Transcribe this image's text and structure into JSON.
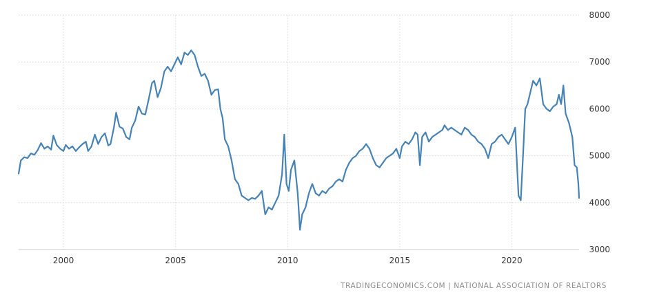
{
  "chart_data": {
    "type": "line",
    "title": "",
    "xlabel": "",
    "ylabel": "",
    "xlim": [
      1998.0,
      2023.0
    ],
    "ylim": [
      3000,
      8000
    ],
    "x_ticks": [
      2000,
      2005,
      2010,
      2015,
      2020
    ],
    "x_tick_labels": [
      "2000",
      "2005",
      "2010",
      "2015",
      "2020"
    ],
    "y_ticks": [
      3000,
      4000,
      5000,
      6000,
      7000,
      8000
    ],
    "y_tick_labels": [
      "3000",
      "4000",
      "5000",
      "6000",
      "7000",
      "8000"
    ],
    "y_axis_side": "right",
    "grid": true,
    "line_color": "#4682b4",
    "source": "TRADINGECONOMICS.COM | NATIONAL ASSOCIATION OF REALTORS",
    "series": [
      {
        "values": [
          [
            1998.0,
            4620
          ],
          [
            1998.1,
            4900
          ],
          [
            1998.25,
            4970
          ],
          [
            1998.4,
            4950
          ],
          [
            1998.55,
            5050
          ],
          [
            1998.7,
            5020
          ],
          [
            1998.85,
            5120
          ],
          [
            1999.0,
            5270
          ],
          [
            1999.15,
            5150
          ],
          [
            1999.3,
            5200
          ],
          [
            1999.45,
            5130
          ],
          [
            1999.55,
            5430
          ],
          [
            1999.7,
            5230
          ],
          [
            1999.85,
            5150
          ],
          [
            2000.0,
            5100
          ],
          [
            2000.1,
            5230
          ],
          [
            2000.25,
            5150
          ],
          [
            2000.4,
            5200
          ],
          [
            2000.55,
            5100
          ],
          [
            2000.7,
            5180
          ],
          [
            2000.85,
            5250
          ],
          [
            2001.0,
            5300
          ],
          [
            2001.1,
            5100
          ],
          [
            2001.25,
            5200
          ],
          [
            2001.4,
            5450
          ],
          [
            2001.55,
            5250
          ],
          [
            2001.7,
            5400
          ],
          [
            2001.85,
            5480
          ],
          [
            2002.0,
            5220
          ],
          [
            2002.1,
            5250
          ],
          [
            2002.25,
            5600
          ],
          [
            2002.35,
            5920
          ],
          [
            2002.5,
            5620
          ],
          [
            2002.65,
            5580
          ],
          [
            2002.8,
            5400
          ],
          [
            2002.95,
            5350
          ],
          [
            2003.05,
            5600
          ],
          [
            2003.2,
            5750
          ],
          [
            2003.35,
            6050
          ],
          [
            2003.5,
            5900
          ],
          [
            2003.65,
            5880
          ],
          [
            2003.8,
            6200
          ],
          [
            2003.95,
            6550
          ],
          [
            2004.05,
            6600
          ],
          [
            2004.2,
            6250
          ],
          [
            2004.35,
            6450
          ],
          [
            2004.5,
            6800
          ],
          [
            2004.65,
            6900
          ],
          [
            2004.8,
            6800
          ],
          [
            2004.95,
            6950
          ],
          [
            2005.1,
            7100
          ],
          [
            2005.25,
            6950
          ],
          [
            2005.4,
            7200
          ],
          [
            2005.55,
            7150
          ],
          [
            2005.7,
            7250
          ],
          [
            2005.85,
            7150
          ],
          [
            2006.0,
            6900
          ],
          [
            2006.15,
            6700
          ],
          [
            2006.3,
            6750
          ],
          [
            2006.45,
            6600
          ],
          [
            2006.6,
            6300
          ],
          [
            2006.75,
            6400
          ],
          [
            2006.9,
            6420
          ],
          [
            2007.0,
            6000
          ],
          [
            2007.1,
            5800
          ],
          [
            2007.2,
            5350
          ],
          [
            2007.35,
            5200
          ],
          [
            2007.5,
            4900
          ],
          [
            2007.65,
            4500
          ],
          [
            2007.8,
            4400
          ],
          [
            2007.95,
            4150
          ],
          [
            2008.1,
            4100
          ],
          [
            2008.25,
            4050
          ],
          [
            2008.4,
            4100
          ],
          [
            2008.55,
            4080
          ],
          [
            2008.7,
            4150
          ],
          [
            2008.85,
            4250
          ],
          [
            2009.0,
            3750
          ],
          [
            2009.15,
            3900
          ],
          [
            2009.3,
            3850
          ],
          [
            2009.45,
            4000
          ],
          [
            2009.6,
            4150
          ],
          [
            2009.75,
            4600
          ],
          [
            2009.85,
            5450
          ],
          [
            2009.95,
            4400
          ],
          [
            2010.05,
            4250
          ],
          [
            2010.15,
            4700
          ],
          [
            2010.3,
            4900
          ],
          [
            2010.45,
            4200
          ],
          [
            2010.55,
            3420
          ],
          [
            2010.65,
            3750
          ],
          [
            2010.8,
            3900
          ],
          [
            2010.95,
            4200
          ],
          [
            2011.1,
            4400
          ],
          [
            2011.25,
            4200
          ],
          [
            2011.4,
            4150
          ],
          [
            2011.55,
            4250
          ],
          [
            2011.7,
            4200
          ],
          [
            2011.85,
            4300
          ],
          [
            2012.0,
            4350
          ],
          [
            2012.15,
            4450
          ],
          [
            2012.3,
            4500
          ],
          [
            2012.45,
            4450
          ],
          [
            2012.6,
            4700
          ],
          [
            2012.75,
            4850
          ],
          [
            2012.9,
            4950
          ],
          [
            2013.05,
            5000
          ],
          [
            2013.2,
            5100
          ],
          [
            2013.35,
            5150
          ],
          [
            2013.5,
            5250
          ],
          [
            2013.65,
            5150
          ],
          [
            2013.8,
            4950
          ],
          [
            2013.95,
            4800
          ],
          [
            2014.1,
            4750
          ],
          [
            2014.25,
            4850
          ],
          [
            2014.4,
            4950
          ],
          [
            2014.55,
            5000
          ],
          [
            2014.7,
            5050
          ],
          [
            2014.85,
            5150
          ],
          [
            2015.0,
            4950
          ],
          [
            2015.1,
            5200
          ],
          [
            2015.25,
            5300
          ],
          [
            2015.4,
            5250
          ],
          [
            2015.55,
            5350
          ],
          [
            2015.7,
            5500
          ],
          [
            2015.8,
            5450
          ],
          [
            2015.9,
            4800
          ],
          [
            2016.0,
            5400
          ],
          [
            2016.15,
            5500
          ],
          [
            2016.3,
            5300
          ],
          [
            2016.45,
            5400
          ],
          [
            2016.6,
            5450
          ],
          [
            2016.75,
            5500
          ],
          [
            2016.9,
            5550
          ],
          [
            2017.0,
            5650
          ],
          [
            2017.15,
            5550
          ],
          [
            2017.3,
            5600
          ],
          [
            2017.45,
            5550
          ],
          [
            2017.6,
            5500
          ],
          [
            2017.75,
            5450
          ],
          [
            2017.9,
            5600
          ],
          [
            2018.05,
            5550
          ],
          [
            2018.2,
            5450
          ],
          [
            2018.35,
            5400
          ],
          [
            2018.5,
            5300
          ],
          [
            2018.65,
            5250
          ],
          [
            2018.8,
            5150
          ],
          [
            2018.95,
            4950
          ],
          [
            2019.1,
            5250
          ],
          [
            2019.25,
            5300
          ],
          [
            2019.4,
            5400
          ],
          [
            2019.55,
            5450
          ],
          [
            2019.7,
            5350
          ],
          [
            2019.85,
            5250
          ],
          [
            2020.0,
            5400
          ],
          [
            2020.15,
            5600
          ],
          [
            2020.3,
            4150
          ],
          [
            2020.4,
            4050
          ],
          [
            2020.5,
            5000
          ],
          [
            2020.6,
            6000
          ],
          [
            2020.7,
            6100
          ],
          [
            2020.85,
            6400
          ],
          [
            2020.95,
            6600
          ],
          [
            2021.1,
            6500
          ],
          [
            2021.25,
            6650
          ],
          [
            2021.4,
            6100
          ],
          [
            2021.55,
            6000
          ],
          [
            2021.7,
            5950
          ],
          [
            2021.85,
            6050
          ],
          [
            2022.0,
            6100
          ],
          [
            2022.1,
            6300
          ],
          [
            2022.2,
            6100
          ],
          [
            2022.3,
            6500
          ],
          [
            2022.4,
            5900
          ],
          [
            2022.55,
            5700
          ],
          [
            2022.7,
            5400
          ],
          [
            2022.8,
            4800
          ],
          [
            2022.9,
            4750
          ],
          [
            2022.97,
            4400
          ],
          [
            2023.0,
            4100
          ]
        ]
      }
    ]
  }
}
